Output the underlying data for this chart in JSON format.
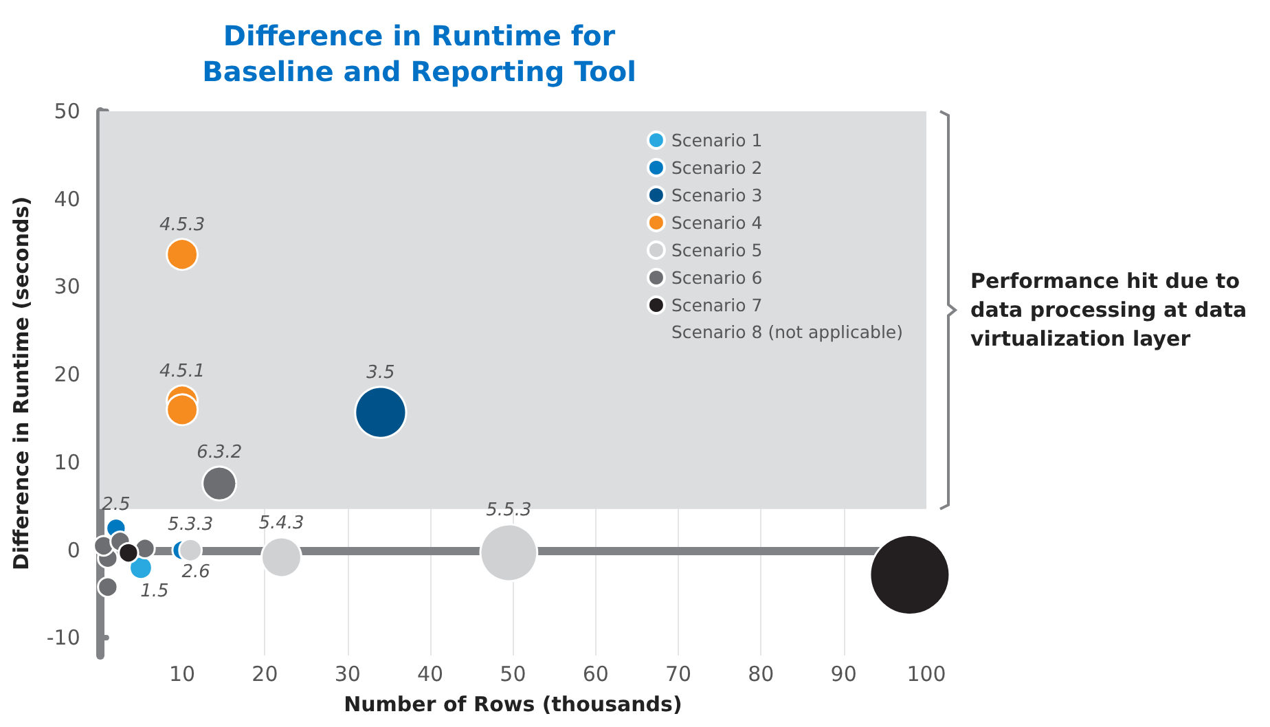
{
  "chart_data": {
    "type": "bubble",
    "title": "Difference in Runtime for\nBaseline and Reporting Tool",
    "xlabel": "Number of Rows (thousands)",
    "ylabel": "Difference in Runtime (seconds)",
    "xlim": [
      0,
      100
    ],
    "xticks": [
      10,
      20,
      30,
      40,
      50,
      60,
      70,
      80,
      90,
      100
    ],
    "ylim": [
      -12,
      50
    ],
    "yticks": [
      -10,
      0,
      10,
      20,
      30,
      40,
      50
    ],
    "grid": true,
    "legend": "top right",
    "series": [
      {
        "name": "Scenario 1",
        "color": "#29a9e0",
        "x": [
          5
        ],
        "values": [
          -2
        ],
        "sizes": [
          0.08
        ]
      },
      {
        "name": "Scenario 2",
        "color": "#0079c1",
        "x": [
          2,
          10
        ],
        "values": [
          2.5,
          0
        ],
        "sizes": [
          0.06,
          0.06
        ]
      },
      {
        "name": "Scenario 3",
        "color": "#00538a",
        "x": [
          34
        ],
        "values": [
          15.7
        ],
        "sizes": [
          0.41
        ]
      },
      {
        "name": "Scenario 4",
        "color": "#f68b1f",
        "x": [
          10,
          10,
          10
        ],
        "values": [
          33.7,
          17,
          16
        ],
        "sizes": [
          0.15,
          0.15,
          0.15
        ]
      },
      {
        "name": "Scenario 5",
        "color": "#d0d1d3",
        "x": [
          11,
          22,
          49.5
        ],
        "values": [
          0,
          -0.8,
          -0.3
        ],
        "sizes": [
          0.08,
          0.25,
          0.51
        ]
      },
      {
        "name": "Scenario 6",
        "color": "#6d6e71",
        "x": [
          14.5,
          1,
          1,
          5.5,
          0.5,
          2.5
        ],
        "values": [
          7.6,
          -0.9,
          -4.2,
          0.2,
          0.5,
          1
        ],
        "sizes": [
          0.18,
          0.06,
          0.06,
          0.06,
          0.06,
          0.06
        ]
      },
      {
        "name": "Scenario 7",
        "color": "#231f20",
        "x": [
          3.5,
          98
        ],
        "values": [
          -0.3,
          -2.8
        ],
        "sizes": [
          0.06,
          1
        ]
      },
      {
        "name": "Scenario 8 (not applicable)"
      }
    ],
    "ref_lines": [
      {
        "axis": "y",
        "value": 0,
        "color": "#808285"
      }
    ],
    "bands": [
      {
        "axis": "y",
        "from": 4.7,
        "to": 50,
        "label": "Performance hit due to data processing at data virtualization layer",
        "color": "#dcdddf"
      }
    ],
    "annotations": [
      {
        "text": "4.5.3",
        "x": 10,
        "y": 33.7
      },
      {
        "text": "4.5.1",
        "x": 10,
        "y": 17
      },
      {
        "text": "3.5",
        "x": 34,
        "y": 15.7
      },
      {
        "text": "6.3.2",
        "x": 14.5,
        "y": 7.6
      },
      {
        "text": "2.5",
        "x": 2,
        "y": 2.5
      },
      {
        "text": "5.3.3",
        "x": 11,
        "y": 0
      },
      {
        "text": "2.6",
        "x": 10,
        "y": 0
      },
      {
        "text": "1.5",
        "x": 5,
        "y": -2
      },
      {
        "text": "5.4.3",
        "x": 22,
        "y": -0.8
      },
      {
        "text": "5.5.3",
        "x": 49.5,
        "y": -0.3
      }
    ]
  }
}
